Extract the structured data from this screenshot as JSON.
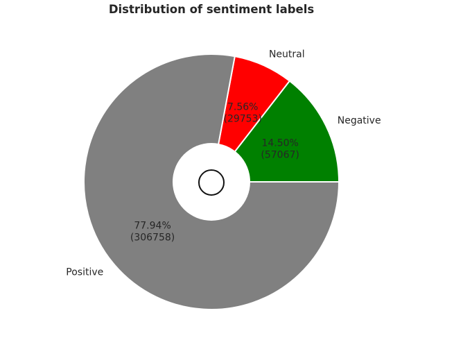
{
  "chart_data": {
    "type": "pie",
    "title": "Distribution of sentiment labels",
    "categories": [
      "Negative",
      "Neutral",
      "Positive"
    ],
    "values": [
      57067,
      29753,
      306758
    ],
    "percent_labels": [
      "14.50%",
      "7.56%",
      "77.94%"
    ],
    "count_labels": [
      "(57067)",
      "(29753)",
      "(306758)"
    ],
    "colors": [
      "#008000",
      "#ff0000",
      "#808080"
    ],
    "donut_hole": true,
    "center_circle": true
  }
}
